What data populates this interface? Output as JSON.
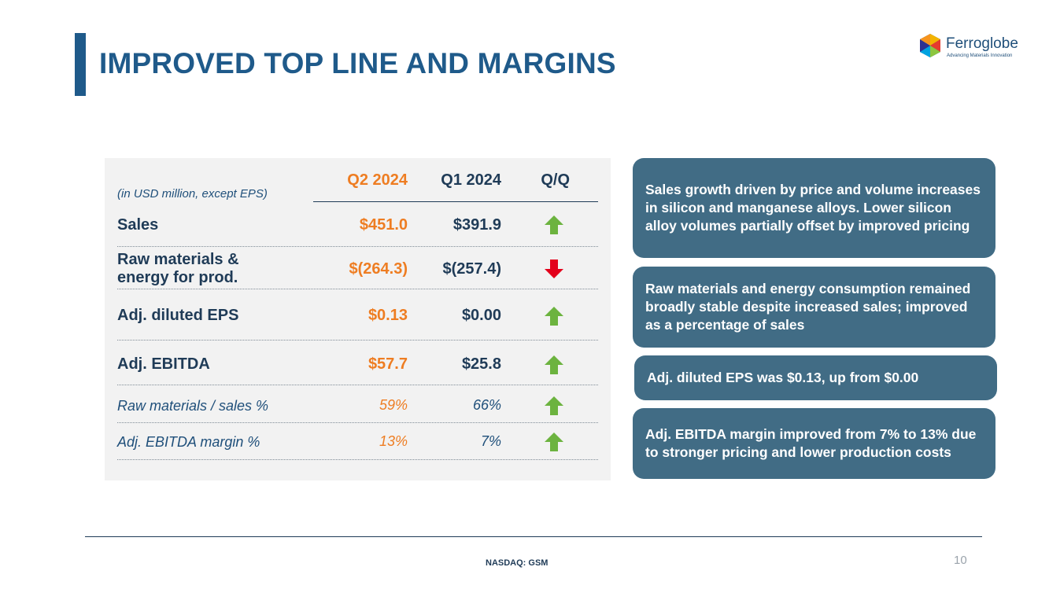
{
  "title": "IMPROVED TOP LINE AND MARGINS",
  "logo": {
    "name": "Ferroglobe",
    "tagline": "Advancing Materials Innovation"
  },
  "table": {
    "units_note": "(in USD million, except EPS)",
    "columns": {
      "q2": "Q2 2024",
      "q1": "Q1 2024",
      "qq": "Q/Q"
    },
    "rows": [
      {
        "label": "Sales",
        "q2": "$451.0",
        "q1": "$391.9",
        "trend": "up"
      },
      {
        "label": "Raw materials & energy for prod.",
        "q2": "$(264.3)",
        "q1": "$(257.4)",
        "trend": "down"
      },
      {
        "label": "Adj. diluted EPS",
        "q2": "$0.13",
        "q1": "$0.00",
        "trend": "up"
      },
      {
        "label": "Adj. EBITDA",
        "q2": "$57.7",
        "q1": "$25.8",
        "trend": "up"
      },
      {
        "label": "Raw materials / sales %",
        "q2": "59%",
        "q1": "66%",
        "trend": "up"
      },
      {
        "label": "Adj. EBITDA margin %",
        "q2": "13%",
        "q1": "7%",
        "trend": "up"
      }
    ]
  },
  "callouts": [
    "Sales growth driven by price and volume increases in silicon and manganese alloys. Lower silicon alloy volumes partially offset by improved pricing",
    "Raw materials and energy consumption remained broadly stable despite increased sales; improved as a percentage of sales",
    "Adj. diluted EPS was $0.13, up from $0.00",
    "Adj. EBITDA margin improved from 7% to 13% due to stronger pricing and lower production costs"
  ],
  "footer": {
    "ticker": "NASDAQ: GSM",
    "page": "10"
  },
  "colors": {
    "brand_blue": "#1f5a8a",
    "accent_orange": "#ee7d22",
    "callout_bg": "#416c85",
    "up_green": "#6cb33f",
    "down_red": "#e3001b"
  }
}
